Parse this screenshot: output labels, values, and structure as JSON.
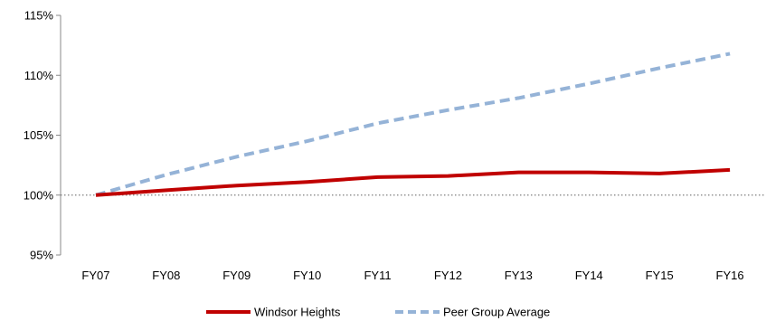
{
  "chart_data": {
    "type": "line",
    "title": "",
    "xlabel": "",
    "ylabel": "",
    "categories": [
      "FY07",
      "FY08",
      "FY09",
      "FY10",
      "FY11",
      "FY12",
      "FY13",
      "FY14",
      "FY15",
      "FY16"
    ],
    "ylim": [
      95,
      115
    ],
    "yticks": [
      95,
      100,
      105,
      110,
      115
    ],
    "ytick_labels": [
      "95%",
      "100%",
      "105%",
      "110%",
      "115%"
    ],
    "grid": false,
    "reference_line": 100,
    "legend_position": "bottom",
    "series": [
      {
        "name": "Windsor Heights",
        "values": [
          100.0,
          100.4,
          100.8,
          101.1,
          101.5,
          101.6,
          101.9,
          101.9,
          101.8,
          102.1
        ],
        "color": "#C00000",
        "style": "solid"
      },
      {
        "name": "Peer Group Average",
        "values": [
          100.0,
          101.7,
          103.2,
          104.5,
          106.0,
          107.1,
          108.1,
          109.3,
          110.6,
          111.8
        ],
        "color": "#95B3D7",
        "style": "dashed"
      }
    ]
  }
}
